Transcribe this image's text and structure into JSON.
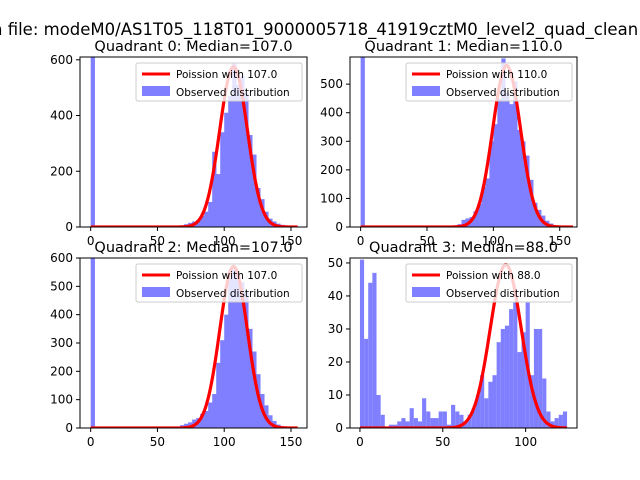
{
  "figure": {
    "suptitle": "n file: modeM0/AS1T05_118T01_9000005718_41919cztM0_level2_quad_clean"
  },
  "colors": {
    "poisson_line": "#ff0000",
    "histogram": "#7f7fff",
    "axes": "#000000",
    "background": "#ffffff"
  },
  "chart_data": [
    {
      "type": "bar",
      "title": "Quadrant 0: Median=107.0",
      "xlim": [
        -8,
        162
      ],
      "ylim": [
        0,
        610
      ],
      "xticks": [
        0,
        50,
        100,
        150
      ],
      "yticks": [
        0,
        200,
        400,
        600
      ],
      "legend": {
        "location": "upper right",
        "entries": [
          "Poission with 107.0",
          "Observed distribution"
        ]
      },
      "poisson": {
        "label": "Poission with 107.0",
        "mean": 107.0,
        "peak": 575,
        "x_range": [
          0,
          155
        ]
      },
      "histogram": {
        "label": "Observed distribution",
        "bin_width": 3.2,
        "bars": [
          [
            0,
            620
          ],
          [
            67,
            5
          ],
          [
            70,
            10
          ],
          [
            73,
            15
          ],
          [
            76,
            20
          ],
          [
            79,
            25
          ],
          [
            82,
            40
          ],
          [
            85,
            55
          ],
          [
            88,
            90
          ],
          [
            91,
            270
          ],
          [
            94,
            190
          ],
          [
            97,
            340
          ],
          [
            100,
            410
          ],
          [
            103,
            470
          ],
          [
            106,
            590
          ],
          [
            109,
            510
          ],
          [
            112,
            540
          ],
          [
            115,
            480
          ],
          [
            118,
            330
          ],
          [
            121,
            260
          ],
          [
            124,
            140
          ],
          [
            127,
            100
          ],
          [
            130,
            55
          ],
          [
            133,
            30
          ],
          [
            136,
            20
          ],
          [
            139,
            12
          ],
          [
            142,
            8
          ],
          [
            145,
            4
          ]
        ]
      }
    },
    {
      "type": "bar",
      "title": "Quadrant 1: Median=110.0",
      "xlim": [
        -8,
        163
      ],
      "ylim": [
        0,
        595
      ],
      "xticks": [
        0,
        50,
        100,
        150
      ],
      "yticks": [
        0,
        100,
        200,
        300,
        400,
        500
      ],
      "legend": {
        "location": "upper right",
        "entries": [
          "Poission with 110.0",
          "Observed distribution"
        ]
      },
      "poisson": {
        "label": "Poission with 110.0",
        "mean": 110.0,
        "peak": 565,
        "x_range": [
          0,
          160
        ]
      },
      "histogram": {
        "label": "Observed distribution",
        "bin_width": 3.2,
        "bars": [
          [
            0,
            610
          ],
          [
            70,
            5
          ],
          [
            73,
            10
          ],
          [
            76,
            25
          ],
          [
            79,
            30
          ],
          [
            82,
            35
          ],
          [
            85,
            55
          ],
          [
            88,
            80
          ],
          [
            91,
            140
          ],
          [
            94,
            170
          ],
          [
            97,
            300
          ],
          [
            100,
            360
          ],
          [
            103,
            450
          ],
          [
            106,
            590
          ],
          [
            109,
            470
          ],
          [
            112,
            430
          ],
          [
            115,
            510
          ],
          [
            118,
            340
          ],
          [
            121,
            300
          ],
          [
            124,
            250
          ],
          [
            127,
            165
          ],
          [
            130,
            85
          ],
          [
            133,
            60
          ],
          [
            136,
            40
          ],
          [
            139,
            22
          ],
          [
            142,
            12
          ],
          [
            145,
            5
          ]
        ]
      }
    },
    {
      "type": "bar",
      "title": "Quadrant 2: Median=107.0",
      "xlim": [
        -8,
        162
      ],
      "ylim": [
        0,
        600
      ],
      "xticks": [
        0,
        50,
        100,
        150
      ],
      "yticks": [
        0,
        100,
        200,
        300,
        400,
        500,
        600
      ],
      "legend": {
        "location": "upper right",
        "entries": [
          "Poission with 107.0",
          "Observed distribution"
        ]
      },
      "poisson": {
        "label": "Poission with 107.0",
        "mean": 107.0,
        "peak": 570,
        "x_range": [
          0,
          155
        ]
      },
      "histogram": {
        "label": "Observed distribution",
        "bin_width": 3.2,
        "bars": [
          [
            0,
            620
          ],
          [
            67,
            10
          ],
          [
            70,
            15
          ],
          [
            73,
            20
          ],
          [
            76,
            30
          ],
          [
            79,
            35
          ],
          [
            82,
            50
          ],
          [
            85,
            60
          ],
          [
            88,
            90
          ],
          [
            91,
            120
          ],
          [
            94,
            230
          ],
          [
            97,
            310
          ],
          [
            100,
            400
          ],
          [
            103,
            530
          ],
          [
            106,
            560
          ],
          [
            109,
            545
          ],
          [
            112,
            515
          ],
          [
            115,
            480
          ],
          [
            118,
            350
          ],
          [
            121,
            270
          ],
          [
            124,
            190
          ],
          [
            127,
            120
          ],
          [
            130,
            80
          ],
          [
            133,
            45
          ],
          [
            136,
            25
          ],
          [
            139,
            12
          ],
          [
            142,
            6
          ]
        ]
      }
    },
    {
      "type": "bar",
      "title": "Quadrant 3: Median=88.0",
      "xlim": [
        -6,
        131
      ],
      "ylim": [
        0,
        51.5
      ],
      "xticks": [
        0,
        50,
        100
      ],
      "yticks": [
        0,
        10,
        20,
        30,
        40,
        50
      ],
      "legend": {
        "location": "upper right",
        "entries": [
          "Poission with 88.0",
          "Observed distribution"
        ]
      },
      "poisson": {
        "label": "Poission with 88.0",
        "mean": 88.0,
        "peak": 49.5,
        "x_range": [
          0,
          125
        ]
      },
      "histogram": {
        "label": "Observed distribution",
        "bin_width": 2.5,
        "bars": [
          [
            0,
            51
          ],
          [
            2.5,
            27
          ],
          [
            5,
            44
          ],
          [
            7.5,
            47
          ],
          [
            10,
            10
          ],
          [
            12.5,
            4
          ],
          [
            17.5,
            1
          ],
          [
            20,
            1
          ],
          [
            22.5,
            2
          ],
          [
            25,
            3
          ],
          [
            27.5,
            2
          ],
          [
            30,
            6
          ],
          [
            32.5,
            3
          ],
          [
            35,
            2
          ],
          [
            37.5,
            9
          ],
          [
            40,
            5
          ],
          [
            42.5,
            3
          ],
          [
            45,
            3
          ],
          [
            47.5,
            5
          ],
          [
            50,
            5
          ],
          [
            52.5,
            1
          ],
          [
            55,
            7
          ],
          [
            57.5,
            5
          ],
          [
            60,
            4
          ],
          [
            62.5,
            2
          ],
          [
            65,
            4
          ],
          [
            67.5,
            6
          ],
          [
            70,
            10
          ],
          [
            72.5,
            16
          ],
          [
            75,
            9
          ],
          [
            77.5,
            14
          ],
          [
            80,
            16
          ],
          [
            82.5,
            26
          ],
          [
            85,
            30
          ],
          [
            87.5,
            31
          ],
          [
            90,
            36
          ],
          [
            92.5,
            38
          ],
          [
            95,
            23
          ],
          [
            97.5,
            29
          ],
          [
            100,
            38
          ],
          [
            102.5,
            16
          ],
          [
            105,
            30
          ],
          [
            107.5,
            30
          ],
          [
            110,
            15
          ],
          [
            112.5,
            5
          ],
          [
            115,
            2
          ],
          [
            117.5,
            3
          ],
          [
            120,
            4
          ],
          [
            122.5,
            5
          ]
        ]
      }
    }
  ]
}
